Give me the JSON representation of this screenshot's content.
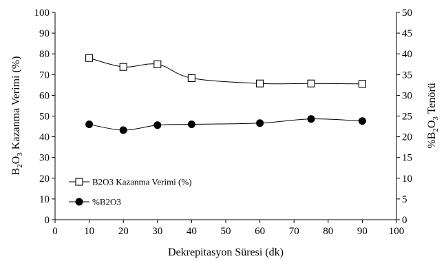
{
  "chart_data": {
    "type": "line",
    "x": [
      10,
      20,
      30,
      40,
      60,
      75,
      90
    ],
    "xlabel": "Dekrepitasyon Süresi (dk)",
    "xlim": [
      0,
      100
    ],
    "xticks": [
      "0",
      "10",
      "20",
      "30",
      "40",
      "50",
      "60",
      "70",
      "80",
      "90",
      "100"
    ],
    "ylabel_left": {
      "prefix": "B",
      "sub1": "2",
      "mid": "O",
      "sub2": "3",
      "rest": " Kazanma Verimi (%)"
    },
    "ylim_left": [
      0,
      100
    ],
    "yticks_left": [
      "0",
      "10",
      "20",
      "30",
      "40",
      "50",
      "60",
      "70",
      "80",
      "90",
      "100"
    ],
    "ylabel_right": {
      "prefix": "%B",
      "sub1": "2",
      "mid": "O",
      "sub2": "3",
      "rest": " Tenörü"
    },
    "ylim_right": [
      0,
      50
    ],
    "yticks_right": [
      "0",
      "5",
      "10",
      "15",
      "20",
      "25",
      "30",
      "35",
      "40",
      "45",
      "50"
    ],
    "grid": false,
    "legend_position": "lower-left",
    "series": [
      {
        "name": "B2O3 Kazanma Verimi (%)",
        "axis": "left",
        "marker": "open-square",
        "values": [
          78.0,
          73.7,
          75.0,
          68.3,
          65.7,
          65.7,
          65.5
        ]
      },
      {
        "name": "%B2O3",
        "axis": "right",
        "marker": "filled-circle",
        "values": [
          23.0,
          21.6,
          22.8,
          23.0,
          23.3,
          24.3,
          23.8
        ]
      }
    ]
  }
}
